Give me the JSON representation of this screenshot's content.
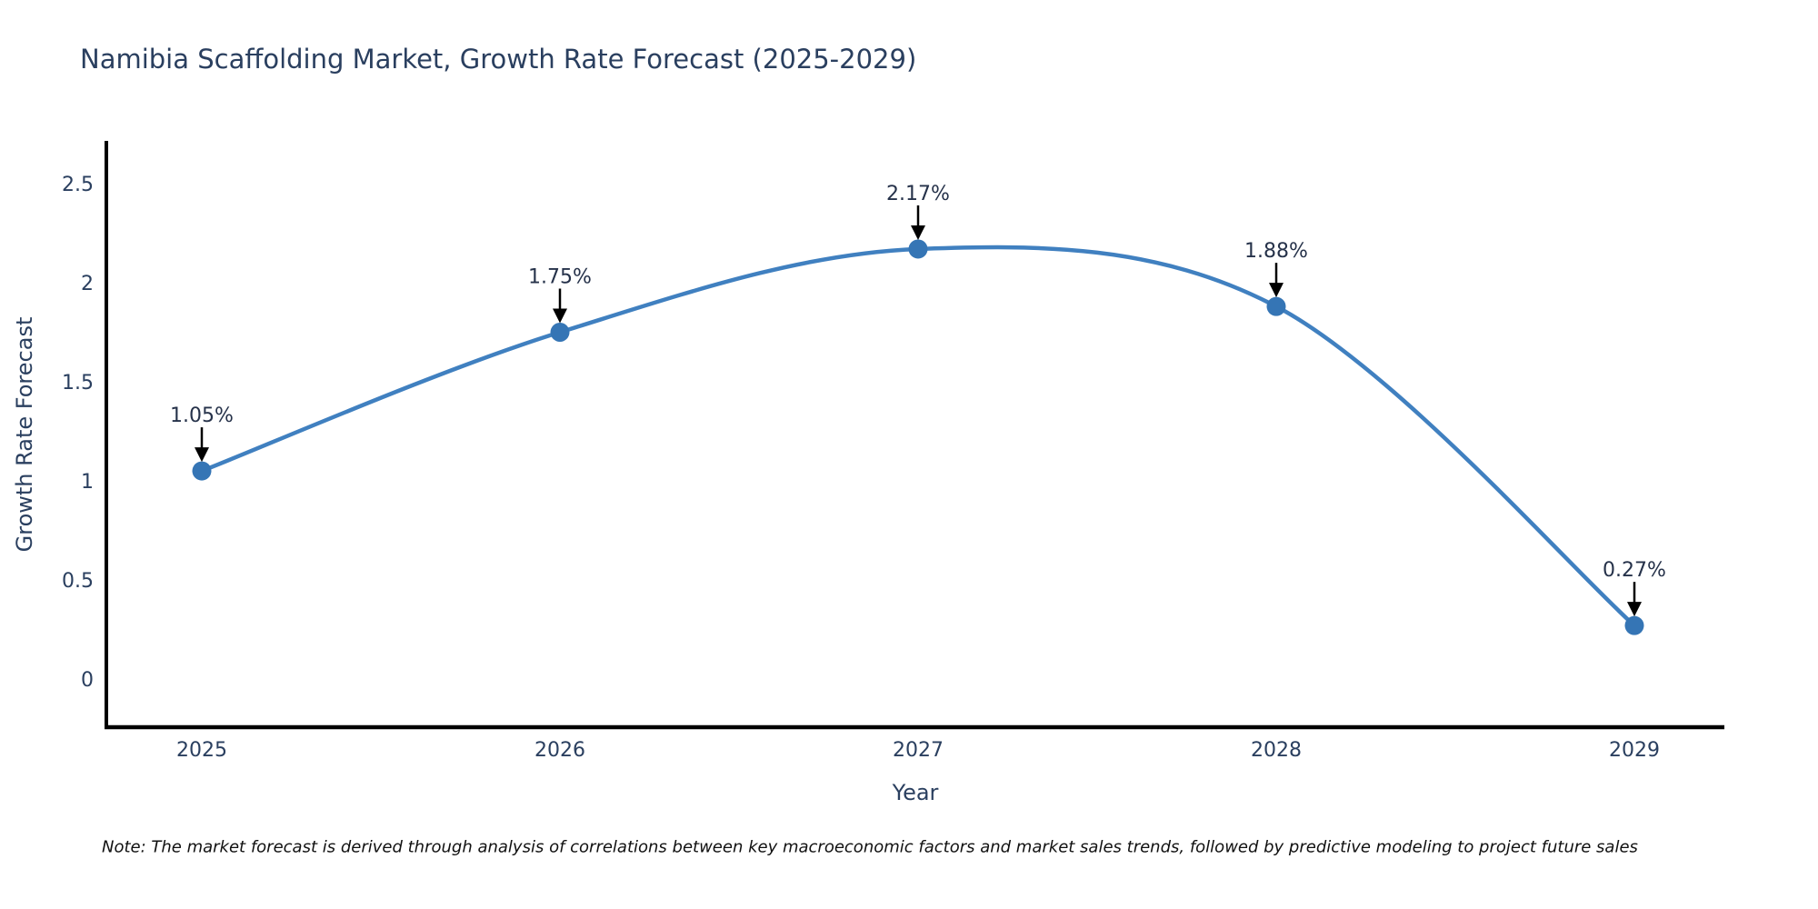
{
  "chart": {
    "title": "Namibia Scaffolding Market, Growth Rate Forecast (2025-2029)",
    "xlabel": "Year",
    "ylabel": "Growth Rate Forecast"
  },
  "note": "Note: The market forecast is derived through analysis of correlations between key macroeconomic factors and market sales trends, followed by predictive modeling to project future sales",
  "chart_data": {
    "type": "line",
    "line_shape": "spline",
    "title": "Namibia Scaffolding Market, Growth Rate Forecast (2025-2029)",
    "xlabel": "Year",
    "ylabel": "Growth Rate Forecast",
    "categories": [
      "2025",
      "2026",
      "2027",
      "2028",
      "2029"
    ],
    "values": [
      1.05,
      1.75,
      2.17,
      1.88,
      0.27
    ],
    "point_labels": [
      "1.05%",
      "1.75%",
      "2.17%",
      "1.88%",
      "0.27%"
    ],
    "yticks": [
      0,
      0.5,
      1,
      1.5,
      2,
      2.5
    ],
    "ylim": [
      -0.25,
      2.72
    ],
    "grid": false,
    "legend": "none",
    "annotations": "each point labeled with value and downward black arrow",
    "colors": {
      "line": "#4080c0",
      "marker": "#3575b5",
      "axis": "#000000",
      "tick_text": "#2a3f5f",
      "title_text": "#2a3f5f",
      "annotation_text": "#26324a",
      "arrow": "#000000",
      "note_text": "#111111",
      "background": "#ffffff"
    }
  }
}
